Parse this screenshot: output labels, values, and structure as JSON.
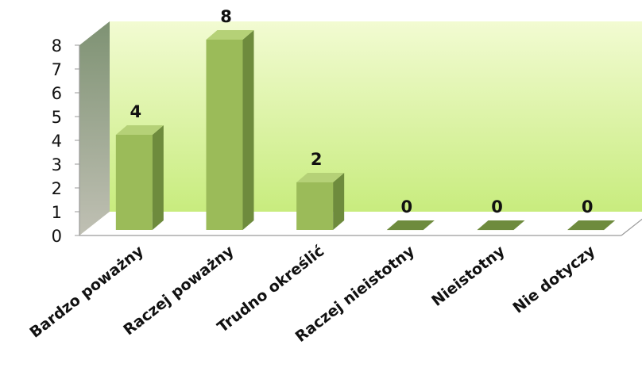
{
  "chart_data": {
    "type": "bar",
    "categories": [
      "Bardzo poważny",
      "Raczej poważny",
      "Trudno określić",
      "Raczej nieistotny",
      "Nieistotny",
      "Nie dotyczy"
    ],
    "values": [
      4,
      8,
      2,
      0,
      0,
      0
    ],
    "title": "",
    "xlabel": "",
    "ylabel": "",
    "ylim": [
      0,
      8
    ],
    "y_ticks": [
      "0",
      "1",
      "2",
      "3",
      "4",
      "5",
      "6",
      "7",
      "8"
    ],
    "data_labels": [
      "4",
      "8",
      "2",
      "0",
      "0",
      "0"
    ],
    "grid": false,
    "legend": "none",
    "style": "3d-column",
    "colors": {
      "bar_front": "#9bbb59",
      "bar_side": "#6e8b3d",
      "bar_top": "#b5d177",
      "back_wall_light": "#f2fbd2",
      "back_wall_dark": "#c8ec7e",
      "side_wall_light": "#c0c0b4",
      "side_wall_dark": "#7e9273",
      "axis": "#9a9a9a"
    }
  }
}
